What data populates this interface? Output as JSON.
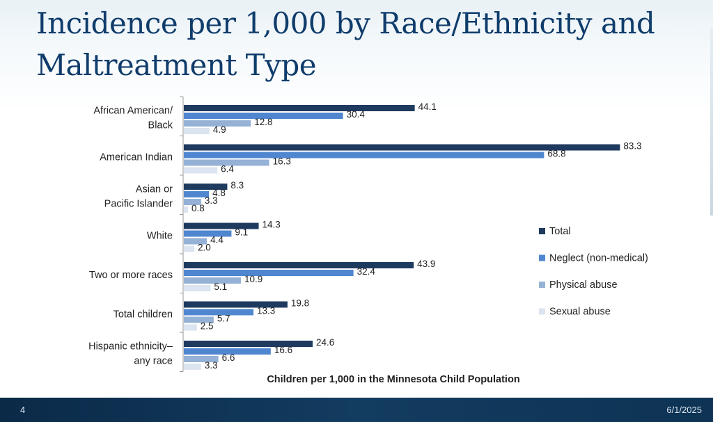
{
  "slide": {
    "title": "Incidence per 1,000 by Race/Ethnicity and Maltreatment Type",
    "number": "4",
    "date": "6/1/2025"
  },
  "chart_data": {
    "type": "bar",
    "orientation": "horizontal",
    "title": "Incidence per 1,000 by Race/Ethnicity and Maltreatment Type",
    "xlabel": "Children per 1,000 in the Minnesota Child Population",
    "ylabel": "",
    "xlim": [
      0,
      85
    ],
    "grid": false,
    "legend_position": "right",
    "categories": [
      [
        "African American/",
        "Black"
      ],
      [
        "American Indian"
      ],
      [
        "Asian or",
        "Pacific Islander"
      ],
      [
        "White"
      ],
      [
        "Two or more races"
      ],
      [
        "Total children"
      ],
      [
        "Hispanic ethnicity–",
        "any race"
      ]
    ],
    "series": [
      {
        "name": "Total",
        "color": "#1f3a5f",
        "values": [
          44.1,
          83.3,
          8.3,
          14.3,
          43.9,
          19.8,
          24.6
        ],
        "labels": [
          "44.1",
          "83.3",
          "8.3",
          "14.3",
          "43.9",
          "19.8",
          "24.6"
        ]
      },
      {
        "name": "Neglect (non-medical)",
        "color": "#4f86cf",
        "values": [
          30.4,
          68.8,
          4.8,
          9.1,
          32.4,
          13.3,
          16.6
        ],
        "labels": [
          "30.4",
          "68.8",
          "4.8",
          "9.1",
          "32.4",
          "13.3",
          "16.6"
        ]
      },
      {
        "name": "Physical abuse",
        "color": "#95b2d6",
        "values": [
          12.8,
          16.3,
          3.3,
          4.4,
          10.9,
          5.7,
          6.6
        ],
        "labels": [
          "12.8",
          "16.3",
          "3.3",
          "4.4",
          "10.9",
          "5.7",
          "6.6"
        ]
      },
      {
        "name": "Sexual abuse",
        "color": "#dbe4f0",
        "values": [
          4.9,
          6.4,
          0.8,
          2.0,
          5.1,
          2.5,
          3.3
        ],
        "labels": [
          "4.9",
          "6.4",
          "0.8",
          "2.0",
          "5.1",
          "2.5",
          "3.3"
        ]
      }
    ]
  }
}
